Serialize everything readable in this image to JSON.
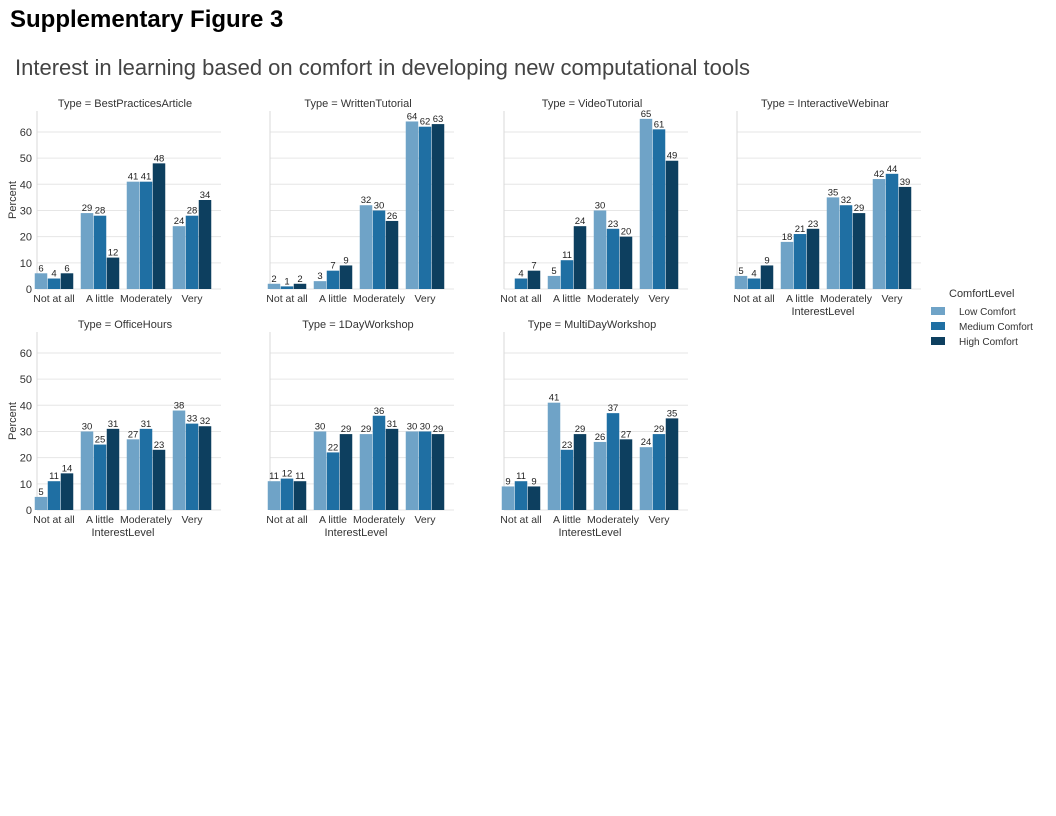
{
  "figure": {
    "title": "Supplementary Figure 3",
    "subtitle": "Interest in learning based on comfort in developing new computational tools"
  },
  "chart_data": {
    "type": "bar",
    "ylabel": "Percent",
    "xlabel": "InterestLevel",
    "ylim": [
      0,
      68
    ],
    "yticks": [
      0,
      10,
      20,
      30,
      40,
      50,
      60
    ],
    "grid": true,
    "categories": [
      "Not at all",
      "A little",
      "Moderately",
      "Very"
    ],
    "legend": {
      "title": "ComfortLevel",
      "position": "right",
      "entries": [
        "Low Comfort",
        "Medium Comfort",
        "High Comfort"
      ],
      "colors": [
        "#6fa3c7",
        "#1f6fa3",
        "#0d3f5f"
      ]
    },
    "panels": [
      {
        "title": "Type = BestPracticesArticle",
        "series": [
          {
            "name": "Low Comfort",
            "values": [
              6,
              29,
              41,
              24
            ]
          },
          {
            "name": "Medium Comfort",
            "values": [
              4,
              28,
              41,
              28
            ]
          },
          {
            "name": "High Comfort",
            "values": [
              6,
              12,
              48,
              34
            ]
          }
        ]
      },
      {
        "title": "Type = WrittenTutorial",
        "series": [
          {
            "name": "Low Comfort",
            "values": [
              2,
              3,
              32,
              64
            ]
          },
          {
            "name": "Medium Comfort",
            "values": [
              1,
              7,
              30,
              62
            ]
          },
          {
            "name": "High Comfort",
            "values": [
              2,
              9,
              26,
              63
            ]
          }
        ]
      },
      {
        "title": "Type = VideoTutorial",
        "series": [
          {
            "name": "Low Comfort",
            "values": [
              null,
              5,
              30,
              65
            ]
          },
          {
            "name": "Medium Comfort",
            "values": [
              4,
              11,
              23,
              61
            ]
          },
          {
            "name": "High Comfort",
            "values": [
              7,
              24,
              20,
              49
            ]
          }
        ]
      },
      {
        "title": "Type = InteractiveWebinar",
        "series": [
          {
            "name": "Low Comfort",
            "values": [
              5,
              18,
              35,
              42
            ]
          },
          {
            "name": "Medium Comfort",
            "values": [
              4,
              21,
              32,
              44
            ]
          },
          {
            "name": "High Comfort",
            "values": [
              9,
              23,
              29,
              39
            ]
          }
        ]
      },
      {
        "title": "Type = OfficeHours",
        "series": [
          {
            "name": "Low Comfort",
            "values": [
              5,
              30,
              27,
              38
            ]
          },
          {
            "name": "Medium Comfort",
            "values": [
              11,
              25,
              31,
              33
            ]
          },
          {
            "name": "High Comfort",
            "values": [
              14,
              31,
              23,
              32
            ]
          }
        ]
      },
      {
        "title": "Type = 1DayWorkshop",
        "series": [
          {
            "name": "Low Comfort",
            "values": [
              11,
              30,
              29,
              30
            ]
          },
          {
            "name": "Medium Comfort",
            "values": [
              12,
              22,
              36,
              30
            ]
          },
          {
            "name": "High Comfort",
            "values": [
              11,
              29,
              31,
              29
            ]
          }
        ]
      },
      {
        "title": "Type = MultiDayWorkshop",
        "series": [
          {
            "name": "Low Comfort",
            "values": [
              9,
              41,
              26,
              24
            ]
          },
          {
            "name": "Medium Comfort",
            "values": [
              11,
              23,
              37,
              29
            ]
          },
          {
            "name": "High Comfort",
            "values": [
              9,
              29,
              27,
              35
            ]
          }
        ]
      }
    ]
  }
}
